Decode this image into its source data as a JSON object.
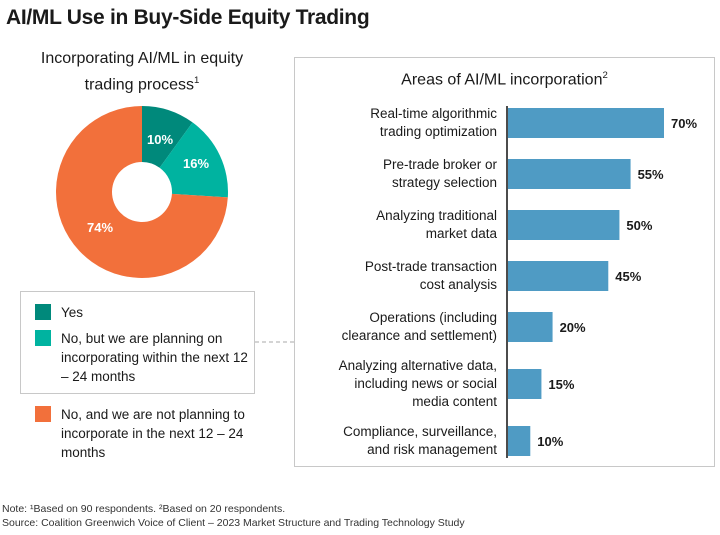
{
  "title": "AI/ML Use in Buy-Side Equity Trading",
  "colors": {
    "yes": "#00897b",
    "planning": "#00b3a0",
    "not_planning": "#f2703b",
    "bar": "#4f9bc4"
  },
  "chart_data": [
    {
      "type": "pie",
      "title": "Incorporating AI/ML in equity trading process",
      "title_sup": "1",
      "donut": true,
      "slices": [
        {
          "label": "Yes",
          "value": 10,
          "value_label": "10%"
        },
        {
          "label": "No, but we are planning on incorporating within the next 12 – 24 months",
          "value": 16,
          "value_label": "16%"
        },
        {
          "label": "No, and we are not planning to incorporate in the next 12 – 24 months",
          "value": 74,
          "value_label": "74%"
        }
      ],
      "legend_placement": "bottom"
    },
    {
      "type": "bar",
      "orientation": "horizontal",
      "title": "Areas of AI/ML incorporation",
      "title_sup": "2",
      "categories": [
        "Real-time algorithmic trading optimization",
        "Pre-trade broker or strategy selection",
        "Analyzing traditional market data",
        "Post-trade transaction cost analysis",
        "Operations (including clearance and settlement)",
        "Analyzing alternative data, including news or social media content",
        "Compliance, surveillance, and risk management"
      ],
      "category_lines": [
        [
          "Real-time algorithmic",
          "trading optimization"
        ],
        [
          "Pre-trade broker or",
          "strategy selection"
        ],
        [
          "Analyzing traditional",
          "market data"
        ],
        [
          "Post-trade transaction",
          "cost analysis"
        ],
        [
          "Operations (including",
          "clearance and settlement)"
        ],
        [
          "Analyzing alternative data,",
          "including news or social",
          "media content"
        ],
        [
          "Compliance, surveillance,",
          "and risk management"
        ]
      ],
      "values": [
        70,
        55,
        50,
        45,
        20,
        15,
        10
      ],
      "value_labels": [
        "70%",
        "55%",
        "50%",
        "45%",
        "20%",
        "15%",
        "10%"
      ],
      "xlim": [
        0,
        100
      ]
    }
  ],
  "notes": {
    "note": "Note: ¹Based on 90 respondents. ²Based on 20 respondents.",
    "source": "Source: Coalition Greenwich Voice of Client – 2023 Market Structure and Trading Technology Study"
  }
}
